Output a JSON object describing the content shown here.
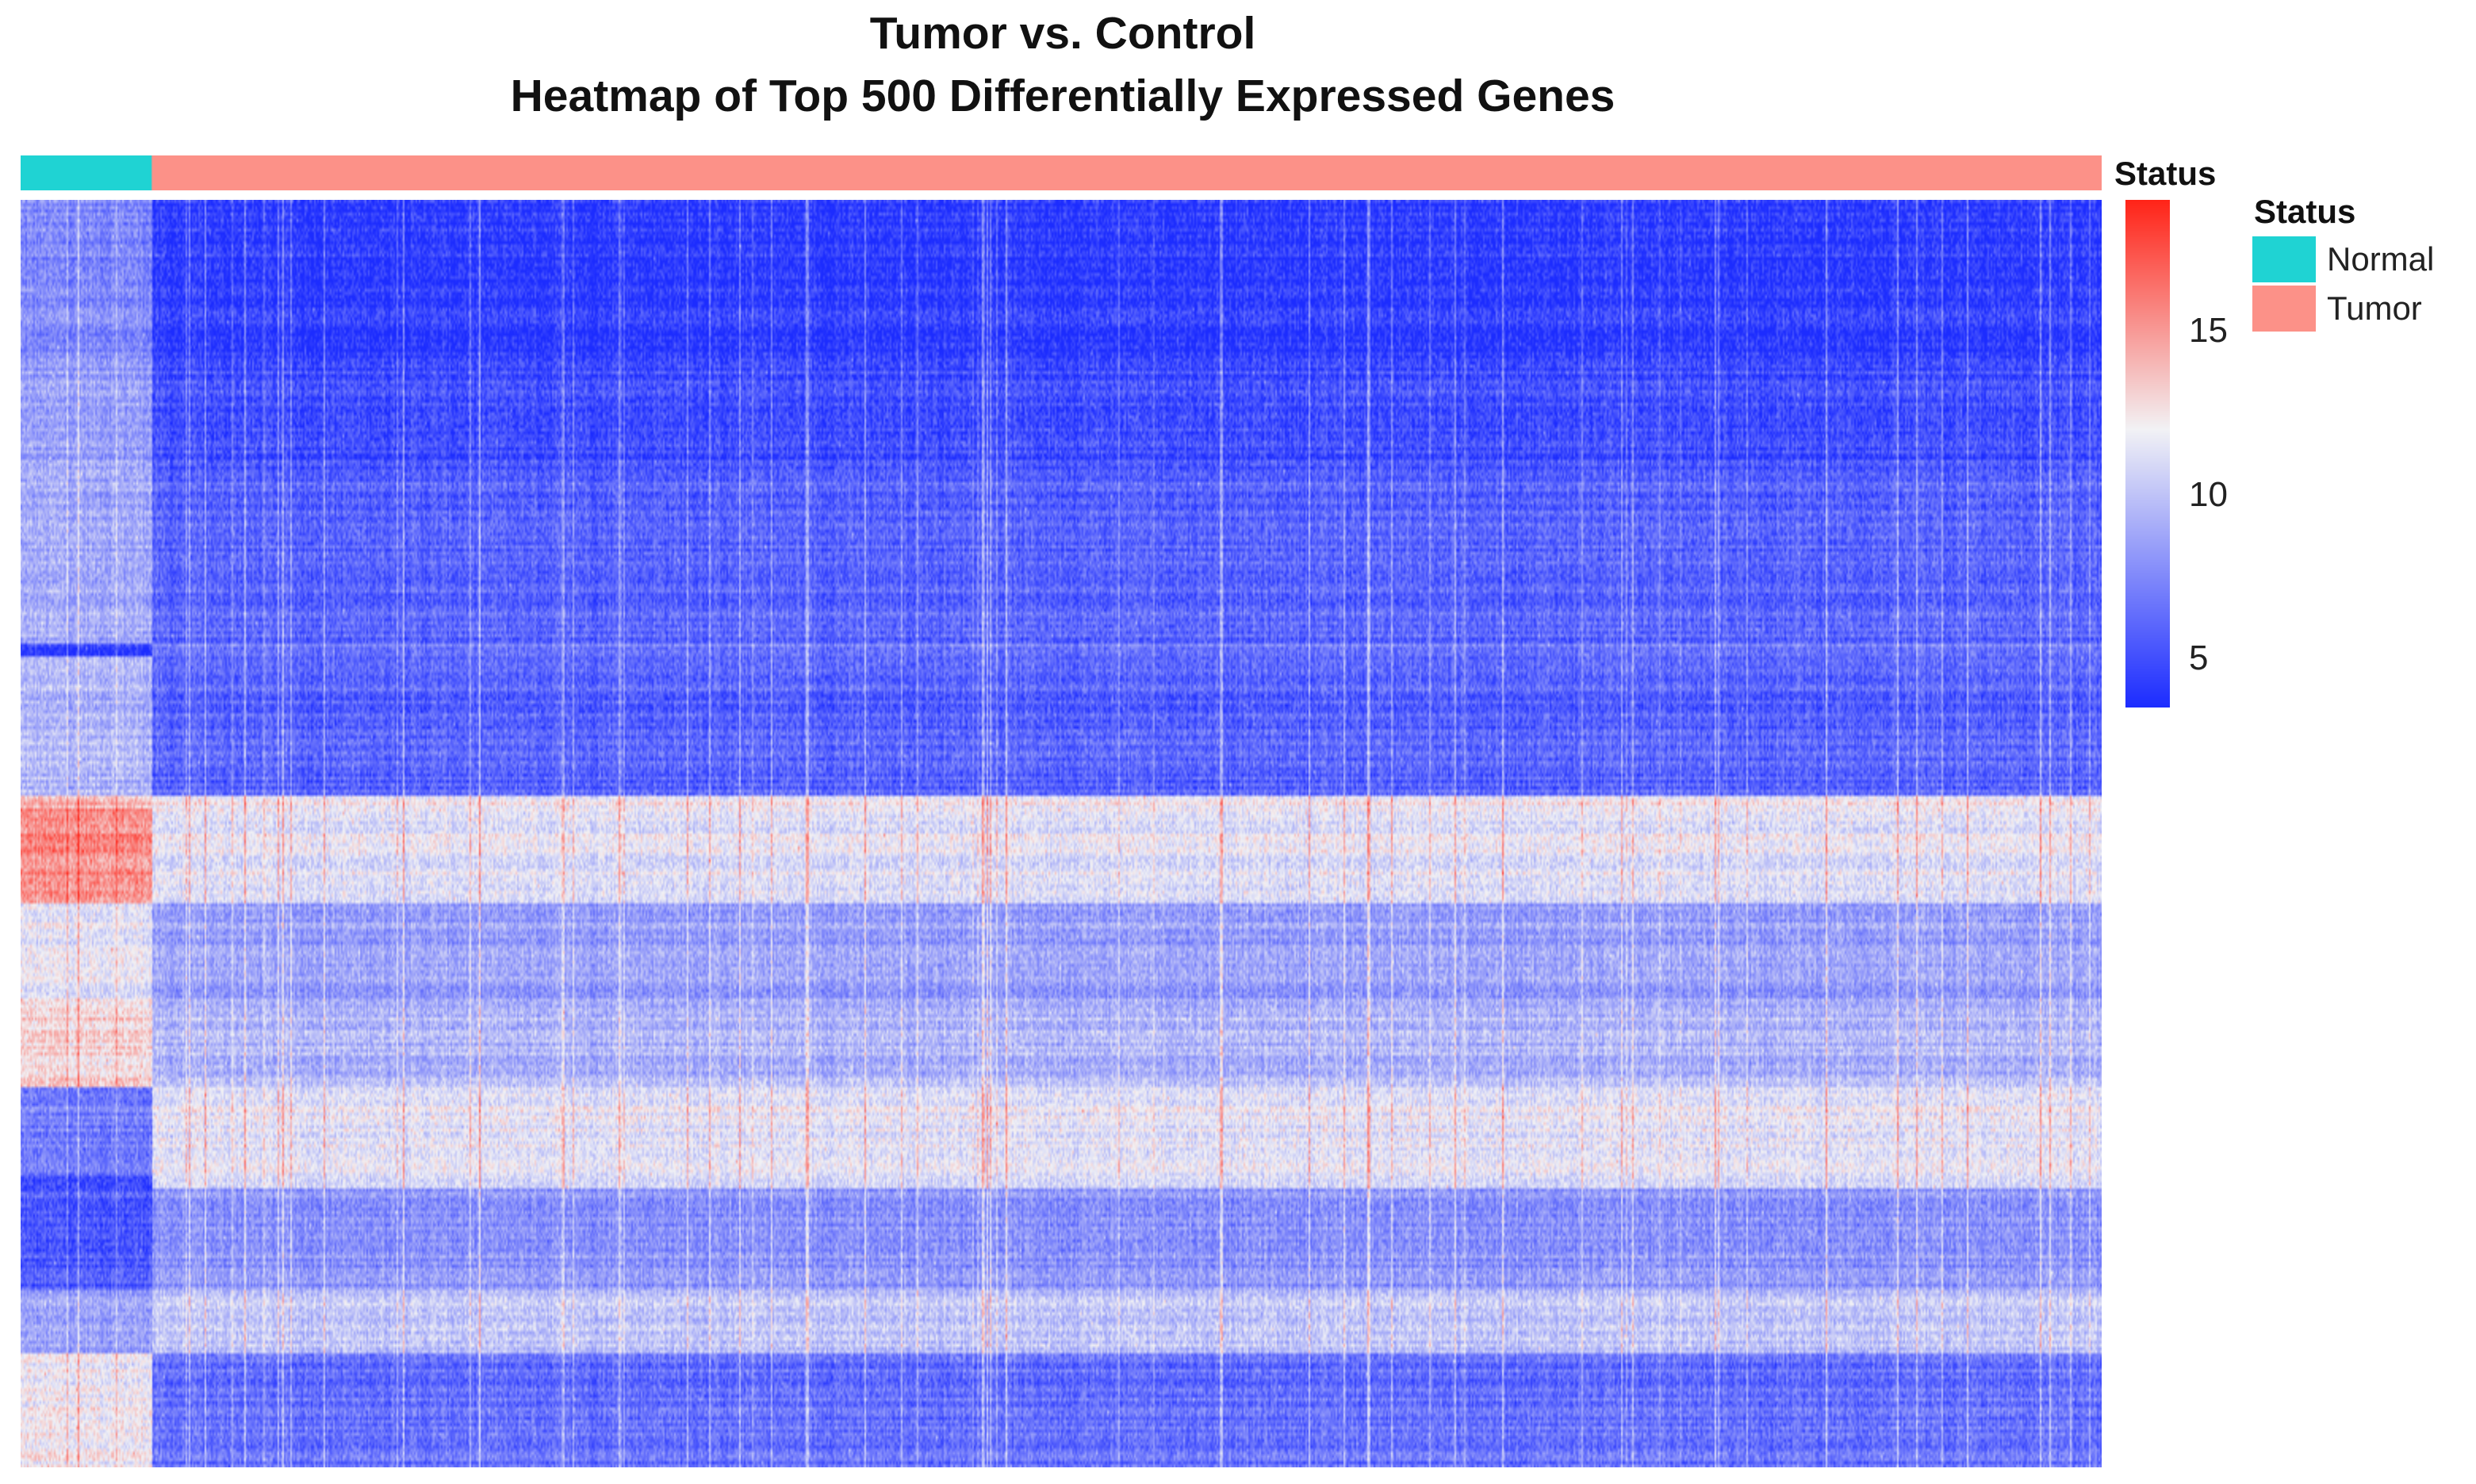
{
  "chart_data": {
    "type": "heatmap",
    "title": "Tumor vs. Control",
    "subtitle": "Heatmap of Top 500 Differentially Expressed Genes",
    "xlabel": "",
    "ylabel": "",
    "color_scale": {
      "low_color": "#1c2cff",
      "mid_color": "#f2f2f5",
      "high_color": "#ff2418",
      "min": 3.5,
      "mid": 12,
      "max": 19,
      "ticks": [
        5,
        10,
        15
      ]
    },
    "annotation": {
      "name": "Status",
      "legend_title": "Status",
      "groups": [
        {
          "label": "Normal",
          "color": "#1fd3d3",
          "fraction": 0.063
        },
        {
          "label": "Tumor",
          "color": "#fc9188",
          "fraction": 0.937
        }
      ]
    },
    "row_blocks": [
      {
        "start": 0.0,
        "end": 0.12,
        "normal_mean": 7.5,
        "tumor_mean": 4.2
      },
      {
        "start": 0.12,
        "end": 0.22,
        "normal_mean": 8.5,
        "tumor_mean": 5.0
      },
      {
        "start": 0.22,
        "end": 0.35,
        "normal_mean": 9.0,
        "tumor_mean": 6.0
      },
      {
        "start": 0.35,
        "end": 0.36,
        "normal_mean": 4.5,
        "tumor_mean": 7.0
      },
      {
        "start": 0.36,
        "end": 0.47,
        "normal_mean": 9.5,
        "tumor_mean": 6.0
      },
      {
        "start": 0.47,
        "end": 0.48,
        "normal_mean": 14.0,
        "tumor_mean": 12.0
      },
      {
        "start": 0.48,
        "end": 0.555,
        "normal_mean": 15.5,
        "tumor_mean": 11.5
      },
      {
        "start": 0.555,
        "end": 0.63,
        "normal_mean": 11.5,
        "tumor_mean": 8.5
      },
      {
        "start": 0.63,
        "end": 0.7,
        "normal_mean": 13.0,
        "tumor_mean": 9.5
      },
      {
        "start": 0.7,
        "end": 0.77,
        "normal_mean": 7.0,
        "tumor_mean": 11.5
      },
      {
        "start": 0.77,
        "end": 0.78,
        "normal_mean": 5.5,
        "tumor_mean": 11.5
      },
      {
        "start": 0.78,
        "end": 0.86,
        "normal_mean": 5.5,
        "tumor_mean": 8.0
      },
      {
        "start": 0.86,
        "end": 0.91,
        "normal_mean": 8.5,
        "tumor_mean": 10.0
      },
      {
        "start": 0.91,
        "end": 1.0,
        "normal_mean": 12.0,
        "tumor_mean": 6.5
      }
    ]
  }
}
